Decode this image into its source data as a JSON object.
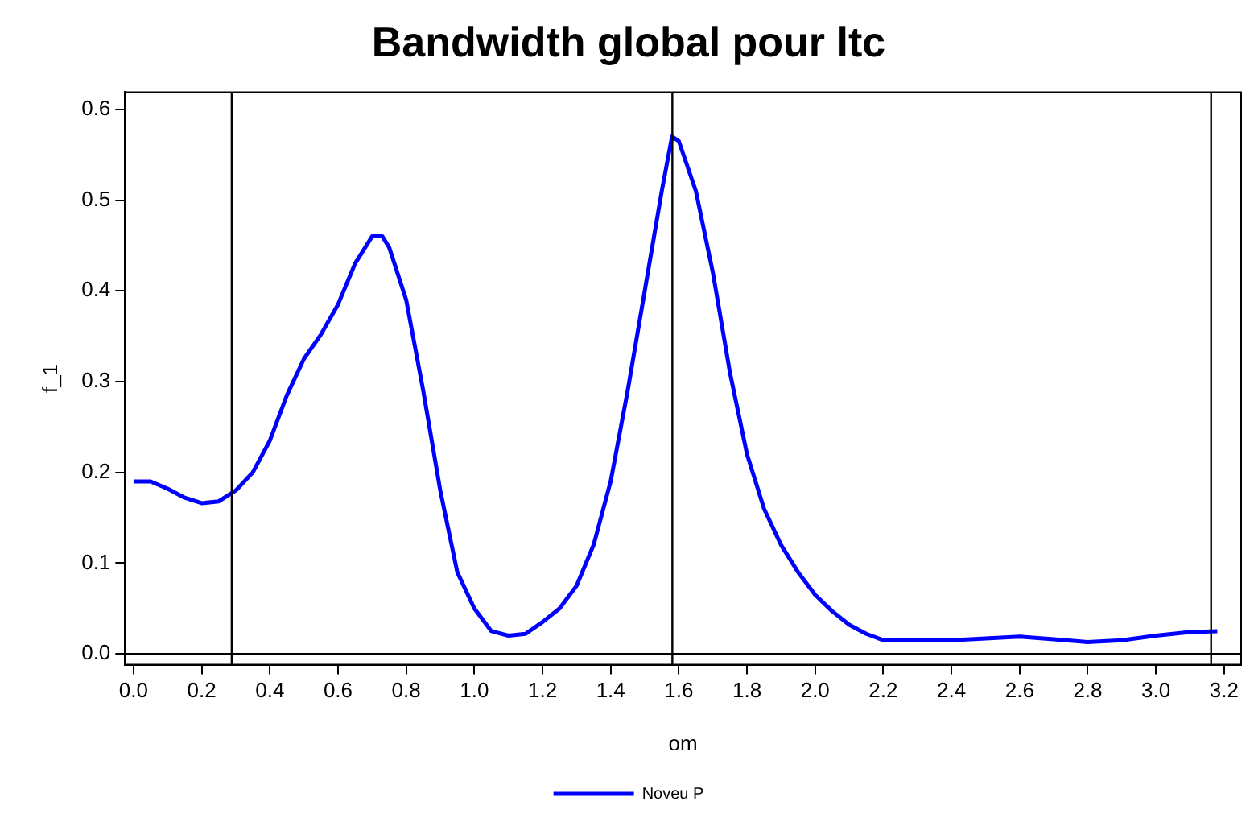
{
  "chart_data": {
    "type": "line",
    "title": "Bandwidth global pour ltc",
    "xlabel": "om",
    "ylabel": "f_1",
    "xlim": [
      -0.025,
      3.25
    ],
    "ylim": [
      -0.012,
      0.619
    ],
    "xticks": [
      {
        "value": 0,
        "label": "0.0"
      },
      0.2,
      0.4,
      0.6,
      0.8,
      {
        "value": 1,
        "label": "1.0"
      },
      1.2,
      1.4,
      1.6,
      1.8,
      {
        "value": 2,
        "label": "2.0"
      },
      2.2,
      2.4,
      2.6,
      2.8,
      {
        "value": 3,
        "label": "3.0"
      },
      3.2
    ],
    "yticks": [
      {
        "value": 0,
        "label": "0.0"
      },
      0.1,
      0.2,
      0.3,
      0.4,
      0.5,
      0.6
    ],
    "grid": false,
    "legend": "bottom",
    "marker": "none",
    "line_style": "solid",
    "ref_lines": [
      {
        "axis": "x",
        "value": 0.288,
        "color": "#000000"
      },
      {
        "axis": "x",
        "value": 1.581,
        "color": "#000000"
      },
      {
        "axis": "x",
        "value": 3.162,
        "color": "#000000"
      },
      {
        "axis": "y",
        "value": 0,
        "color": "#000000"
      }
    ],
    "series": [
      {
        "name": "Noveu P",
        "color": "#0000ff",
        "x": [
          0,
          0.05,
          0.1,
          0.15,
          0.2,
          0.25,
          0.3,
          0.35,
          0.4,
          0.45,
          0.5,
          0.55,
          0.6,
          0.65,
          0.7,
          0.73,
          0.75,
          0.8,
          0.85,
          0.9,
          0.95,
          1.0,
          1.05,
          1.1,
          1.15,
          1.2,
          1.25,
          1.3,
          1.35,
          1.4,
          1.45,
          1.5,
          1.55,
          1.58,
          1.6,
          1.65,
          1.7,
          1.75,
          1.8,
          1.85,
          1.9,
          1.95,
          2.0,
          2.05,
          2.1,
          2.15,
          2.2,
          2.3,
          2.4,
          2.5,
          2.6,
          2.7,
          2.8,
          2.9,
          3.0,
          3.1,
          3.18
        ],
        "values": [
          0.19,
          0.19,
          0.182,
          0.172,
          0.166,
          0.168,
          0.18,
          0.2,
          0.235,
          0.285,
          0.325,
          0.352,
          0.385,
          0.43,
          0.46,
          0.46,
          0.448,
          0.39,
          0.29,
          0.18,
          0.09,
          0.05,
          0.025,
          0.02,
          0.022,
          0.035,
          0.05,
          0.075,
          0.12,
          0.19,
          0.29,
          0.4,
          0.51,
          0.57,
          0.565,
          0.51,
          0.42,
          0.31,
          0.22,
          0.16,
          0.12,
          0.09,
          0.065,
          0.047,
          0.032,
          0.022,
          0.015,
          0.015,
          0.015,
          0.017,
          0.019,
          0.016,
          0.013,
          0.015,
          0.02,
          0.024,
          0.025
        ]
      }
    ]
  }
}
